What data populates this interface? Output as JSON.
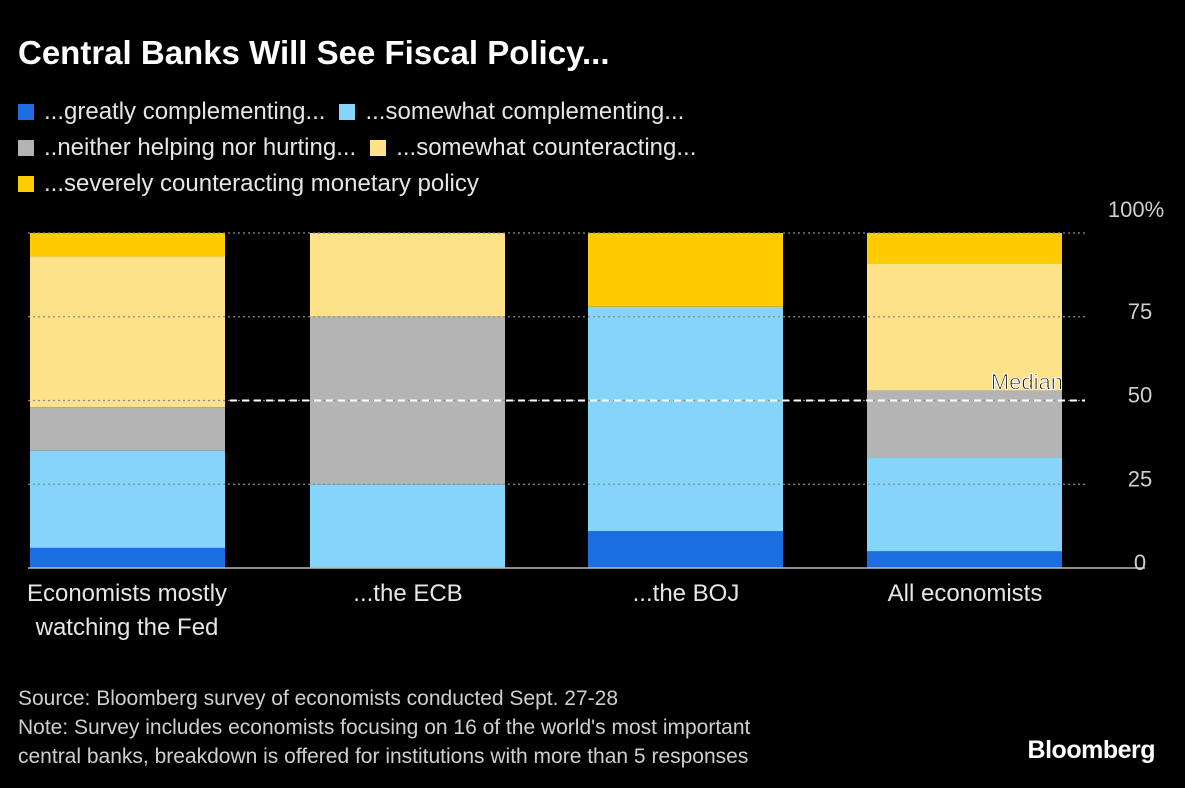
{
  "title": "Central Banks Will See Fiscal Policy...",
  "legend": [
    {
      "label": "...greatly complementing...",
      "color": "#1a6ee0"
    },
    {
      "label": "...somewhat complementing...",
      "color": "#85d4fa"
    },
    {
      "label": "..neither helping nor hurting...",
      "color": "#b4b4b4"
    },
    {
      "label": "...somewhat counteracting...",
      "color": "#fde289"
    },
    {
      "label": "...severely counteracting monetary policy",
      "color": "#ffcc00"
    }
  ],
  "median_label": "Median",
  "footer": {
    "source": "Source: Bloomberg survey of economists conducted Sept. 27-28",
    "note_line1": "Note: Survey includes economists focusing on 16 of the world's most important",
    "note_line2": "central banks, breakdown is offered for institutions with more than 5 responses"
  },
  "brand": "Bloomberg",
  "chart_data": {
    "type": "bar",
    "stacked": true,
    "categories": [
      [
        "Economists mostly",
        "watching the Fed"
      ],
      [
        "...the ECB"
      ],
      [
        "...the BOJ"
      ],
      [
        "All economists"
      ]
    ],
    "series": [
      {
        "name": "...greatly complementing...",
        "color": "#1a6ee0",
        "values": [
          6,
          0,
          11,
          5
        ]
      },
      {
        "name": "...somewhat complementing...",
        "color": "#85d4fa",
        "values": [
          29,
          25,
          67,
          28
        ]
      },
      {
        "name": "..neither helping nor hurting...",
        "color": "#b4b4b4",
        "values": [
          13,
          50,
          0,
          20
        ]
      },
      {
        "name": "...somewhat counteracting...",
        "color": "#fde289",
        "values": [
          45,
          25,
          0,
          38
        ]
      },
      {
        "name": "...severely counteracting monetary policy",
        "color": "#ffcc00",
        "values": [
          7,
          0,
          22,
          9
        ]
      }
    ],
    "ylim": [
      0,
      100
    ],
    "yticks": [
      0,
      25,
      50,
      75,
      100
    ],
    "ytick_labels": [
      "0",
      "25",
      "50",
      "75",
      "100%"
    ],
    "median": 50,
    "grid": true
  }
}
